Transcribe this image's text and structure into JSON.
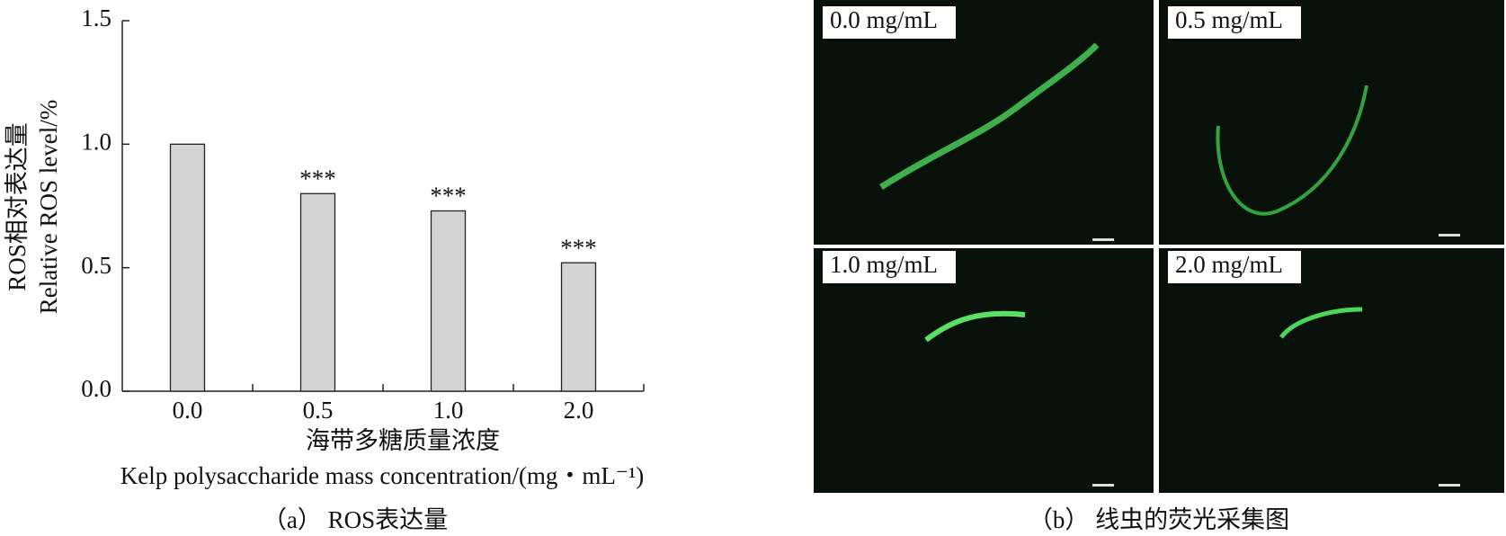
{
  "chart_data": {
    "type": "bar",
    "y_label": [
      "ROS相对表达量",
      "Relative ROS level/%"
    ],
    "x_label": [
      "海带多糖质量浓度",
      "Kelp polysaccharide mass concentration/(mg・mL⁻¹)"
    ],
    "categories": [
      "0.0",
      "0.5",
      "1.0",
      "2.0"
    ],
    "values": [
      1.0,
      0.8,
      0.73,
      0.52
    ],
    "annotations": [
      null,
      "***",
      "***",
      "***"
    ],
    "color": "#d3d3d3",
    "ylim": [
      0,
      1.5
    ],
    "yticks": [
      {
        "value": 0,
        "label": "0.0"
      },
      {
        "value": 0.5,
        "label": "0.5"
      },
      {
        "value": 1,
        "label": "1.0"
      },
      {
        "value": 1.5,
        "label": "1.5"
      }
    ],
    "caption": "（a） ROS表达量"
  },
  "image_panel": {
    "labels": [
      "0.0 mg/mL",
      "0.5 mg/mL",
      "1.0 mg/mL",
      "2.0 mg/mL"
    ],
    "caption": "（b） 线虫的荧光采集图"
  }
}
